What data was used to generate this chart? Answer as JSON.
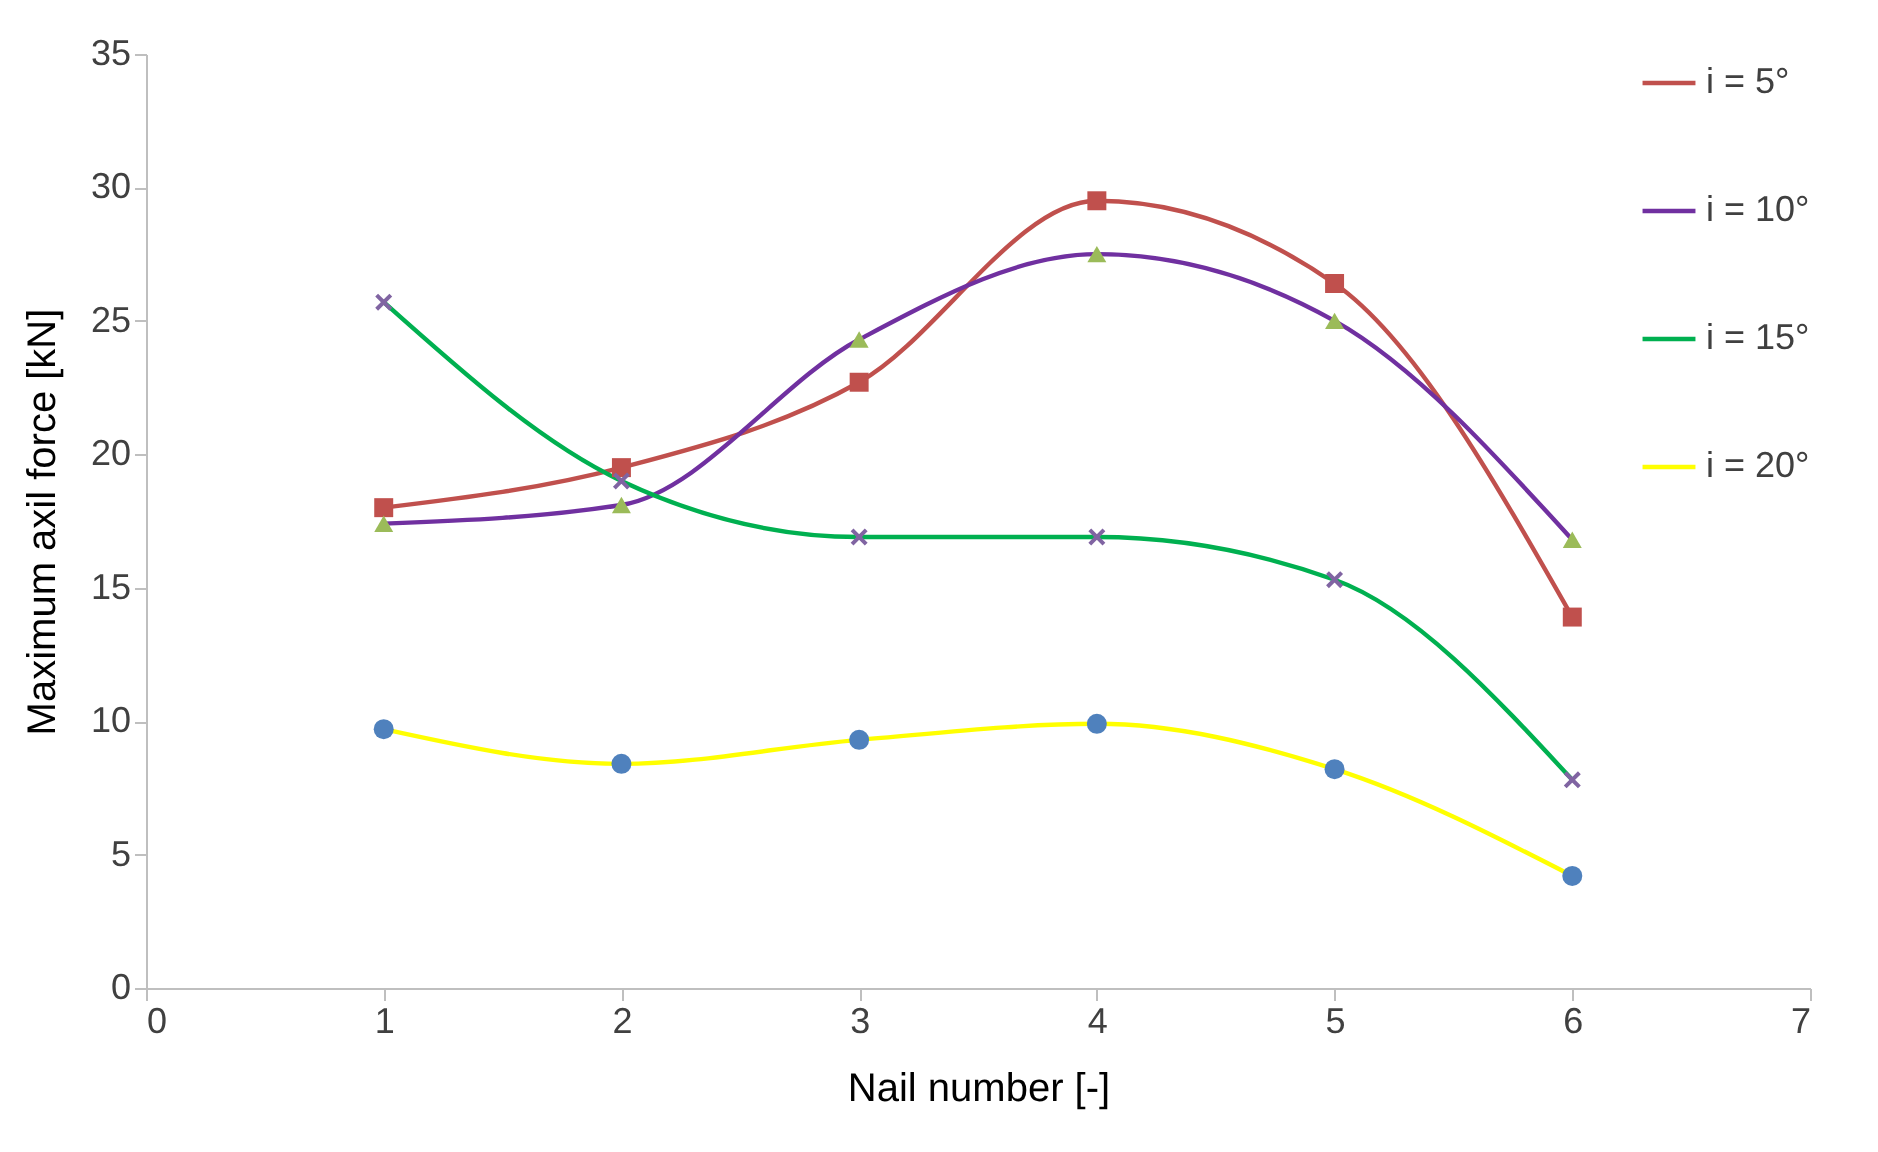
{
  "chart_data": {
    "type": "line",
    "xlabel": "Nail number [-]",
    "ylabel": "Maximum axil force [kN]",
    "x": [
      1,
      2,
      3,
      4,
      5,
      6
    ],
    "xlim": [
      0,
      7
    ],
    "xticks": [
      0,
      1,
      2,
      3,
      4,
      5,
      6,
      7
    ],
    "ylim": [
      0,
      35
    ],
    "yticks": [
      0,
      5,
      10,
      15,
      20,
      25,
      30,
      35
    ],
    "grid": false,
    "legend": "top right",
    "series": [
      {
        "name": "i = 5°",
        "color": "#c0504d",
        "marker": "square",
        "colors": [
          "#c0504d",
          "#c0504d",
          "#c0504d",
          "#c0504d",
          "#c0504d",
          "#c0504d"
        ],
        "values": [
          18.0,
          19.5,
          22.7,
          29.5,
          26.4,
          13.9
        ]
      },
      {
        "name": "i = 10°",
        "color": "#7030a0",
        "marker": "triangle",
        "colors": [
          "#9bbb59",
          "#9bbb59",
          "#9bbb59",
          "#9bbb59",
          "#9bbb59",
          "#9bbb59"
        ],
        "values": [
          17.4,
          18.1,
          24.3,
          27.5,
          25.0,
          16.8
        ]
      },
      {
        "name": "i = 15°",
        "color": "#00b050",
        "marker": "cross",
        "colors": [
          "#8064a2",
          "#8064a2",
          "#8064a2",
          "#8064a2",
          "#8064a2",
          "#8064a2"
        ],
        "values": [
          25.7,
          19.0,
          16.9,
          16.9,
          15.3,
          7.8
        ]
      },
      {
        "name": "i = 20°",
        "color": "#ffff00",
        "marker": "circle",
        "colors": [
          "#4f81bd",
          "#4f81bd",
          "#4f81bd",
          "#4f81bd",
          "#4f81bd",
          "#4f81bd"
        ],
        "values": [
          9.7,
          8.4,
          9.3,
          9.9,
          8.2,
          4.2
        ]
      }
    ]
  }
}
